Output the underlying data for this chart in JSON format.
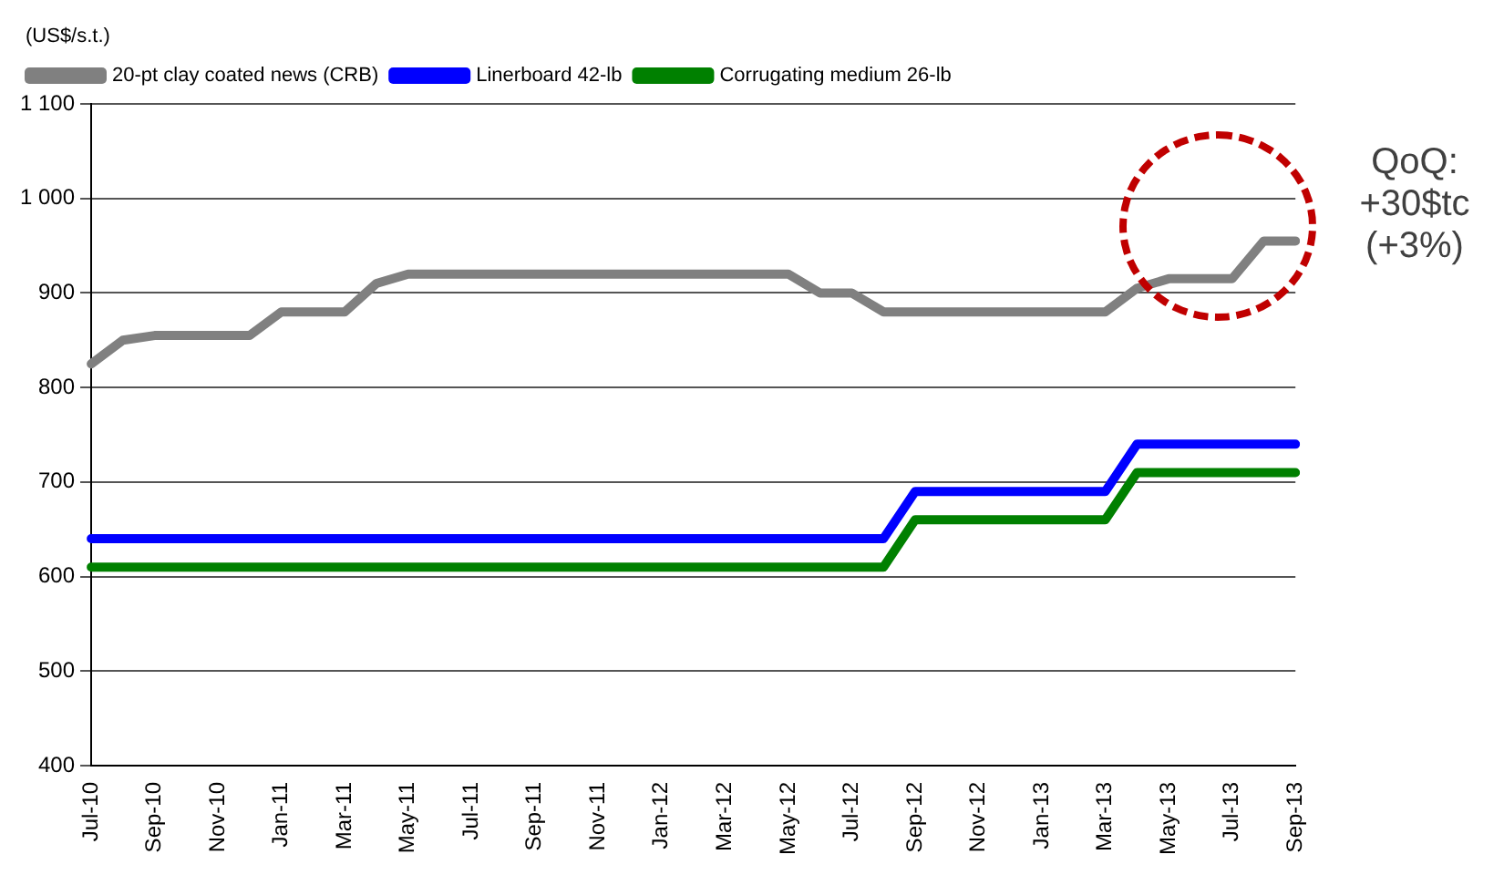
{
  "chart_data": {
    "type": "line",
    "ylabel": "(US$/s.t.)",
    "categories": [
      "Jul-10",
      null,
      "Sep-10",
      null,
      "Nov-10",
      null,
      "Jan-11",
      null,
      "Mar-11",
      null,
      "May-11",
      null,
      "Jul-11",
      null,
      "Sep-11",
      null,
      "Nov-11",
      null,
      "Jan-12",
      null,
      "Mar-12",
      null,
      "May-12",
      null,
      "Jul-12",
      null,
      "Sep-12",
      null,
      "Nov-12",
      null,
      "Jan-13",
      null,
      "Mar-13",
      null,
      "May-13",
      null,
      "Jul-13",
      null,
      "Sep-13"
    ],
    "series": [
      {
        "name": "20-pt clay coated news (CRB)",
        "color": "#808080",
        "values": [
          825,
          850,
          855,
          855,
          855,
          855,
          880,
          880,
          880,
          910,
          920,
          920,
          920,
          920,
          920,
          920,
          920,
          920,
          920,
          920,
          920,
          920,
          920,
          900,
          900,
          880,
          880,
          880,
          880,
          880,
          880,
          880,
          880,
          905,
          915,
          915,
          915,
          955,
          955
        ]
      },
      {
        "name": "Linerboard 42-lb",
        "color": "#0000ff",
        "values": [
          640,
          640,
          640,
          640,
          640,
          640,
          640,
          640,
          640,
          640,
          640,
          640,
          640,
          640,
          640,
          640,
          640,
          640,
          640,
          640,
          640,
          640,
          640,
          640,
          640,
          640,
          690,
          690,
          690,
          690,
          690,
          690,
          690,
          740,
          740,
          740,
          740,
          740,
          740
        ]
      },
      {
        "name": "Corrugating medium 26-lb",
        "color": "#008000",
        "values": [
          610,
          610,
          610,
          610,
          610,
          610,
          610,
          610,
          610,
          610,
          610,
          610,
          610,
          610,
          610,
          610,
          610,
          610,
          610,
          610,
          610,
          610,
          610,
          610,
          610,
          610,
          660,
          660,
          660,
          660,
          660,
          660,
          660,
          710,
          710,
          710,
          710,
          710,
          710
        ]
      }
    ],
    "ylim": [
      400,
      1100
    ],
    "yticks": [
      400,
      500,
      600,
      700,
      800,
      900,
      {
        "value": 1000,
        "label": "1 000"
      },
      {
        "value": 1100,
        "label": "1 100"
      }
    ],
    "grid": "y",
    "legend": "top left",
    "marker": "none",
    "line_style": "solid",
    "annotations": [
      "QoQ:\n+30$tc\n(+3%)"
    ]
  }
}
